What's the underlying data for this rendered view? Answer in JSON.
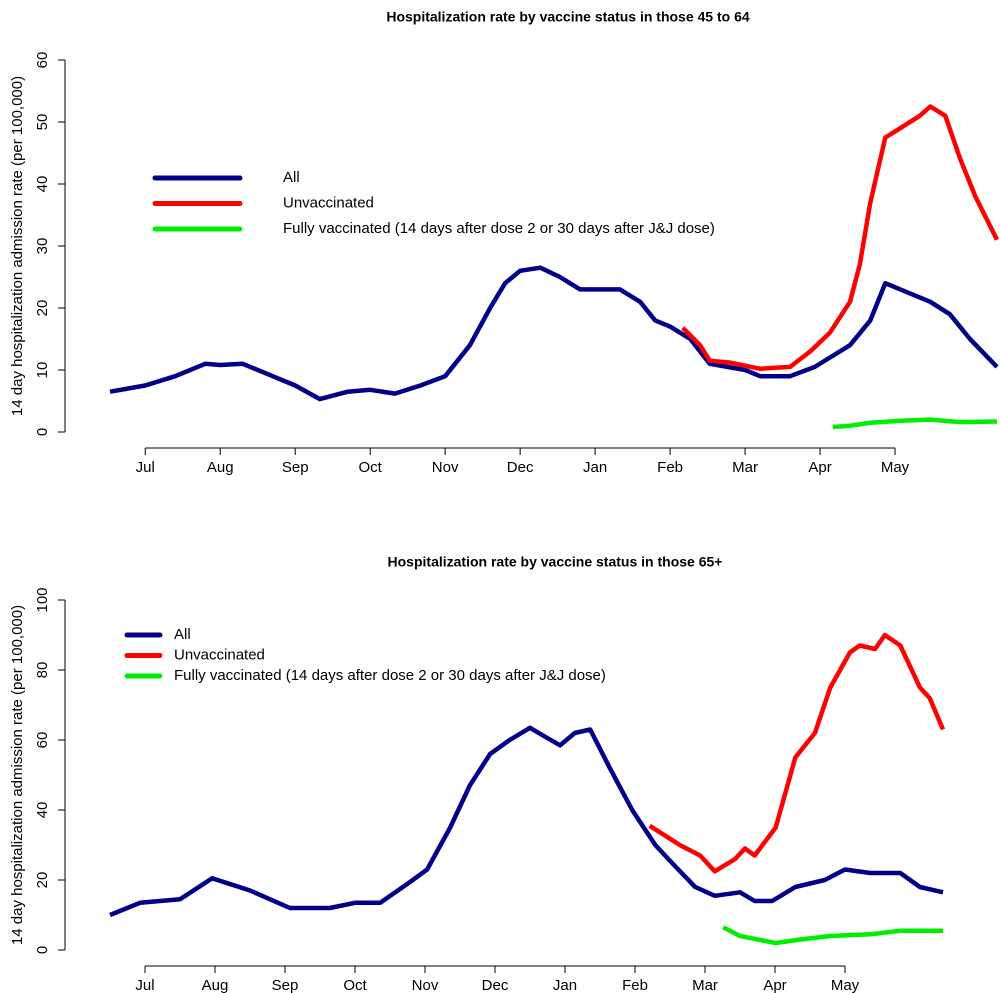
{
  "chart_data": [
    {
      "type": "line",
      "title": "Hospitalization rate by vaccine status in those 45 to 64",
      "y_label": "14 day hospitalization admission rate (per 100,000)",
      "xlim": [
        -0.47,
        11.36
      ],
      "ylim": [
        0,
        60
      ],
      "yticks": [
        0,
        10,
        20,
        30,
        40,
        50,
        60
      ],
      "xticks": [
        {
          "value": 0,
          "label": "Jul"
        },
        {
          "value": 1,
          "label": "Aug"
        },
        {
          "value": 2,
          "label": "Sep"
        },
        {
          "value": 3,
          "label": "Oct"
        },
        {
          "value": 4,
          "label": "Nov"
        },
        {
          "value": 5,
          "label": "Dec"
        },
        {
          "value": 6,
          "label": "Jan"
        },
        {
          "value": 7,
          "label": "Feb"
        },
        {
          "value": 8,
          "label": "Mar"
        },
        {
          "value": 9,
          "label": "Apr"
        },
        {
          "value": 10,
          "label": "May"
        }
      ],
      "series": [
        {
          "name": "All",
          "color": "#00008b",
          "x": [
            -0.47,
            0,
            0.4,
            0.8,
            1,
            1.3,
            1.6,
            2,
            2.33,
            2.7,
            3,
            3.33,
            3.67,
            4,
            4.33,
            4.6,
            4.8,
            5,
            5.27,
            5.53,
            5.8,
            6,
            6.33,
            6.6,
            6.8,
            7,
            7.27,
            7.53,
            8,
            8.2,
            8.6,
            8.93,
            9.13,
            9.4,
            9.67,
            9.87,
            10.07,
            10.47,
            10.73,
            11,
            11.36
          ],
          "values": [
            6.5,
            7.5,
            9,
            11,
            10.8,
            11,
            9.5,
            7.5,
            5.3,
            6.5,
            6.8,
            6.2,
            7.5,
            9,
            14,
            20,
            24,
            26,
            26.5,
            25,
            23,
            23,
            23,
            21,
            18,
            17,
            15,
            11,
            10,
            9,
            9,
            10.5,
            12,
            14,
            18,
            24,
            23,
            21,
            19,
            15,
            10.5
          ]
        },
        {
          "name": "Unvaccinated",
          "color": "#ff0000",
          "x": [
            7.17,
            7.4,
            7.53,
            7.8,
            8.2,
            8.6,
            8.87,
            9.13,
            9.4,
            9.53,
            9.67,
            9.87,
            10.07,
            10.33,
            10.47,
            10.67,
            10.87,
            11.07,
            11.36
          ],
          "values": [
            16.8,
            14,
            11.5,
            11.2,
            10.2,
            10.5,
            13,
            16,
            21,
            27,
            37,
            47.5,
            49,
            51,
            52.5,
            51,
            44,
            38,
            31
          ]
        },
        {
          "name": "Fully vaccinated (14 days after dose 2 or 30 days after J&J dose)",
          "color": "#00ee00",
          "x": [
            9.17,
            9.4,
            9.67,
            10.07,
            10.47,
            10.87,
            11.36
          ],
          "values": [
            0.8,
            1,
            1.5,
            1.8,
            2,
            1.6,
            1.7
          ]
        }
      ]
    },
    {
      "type": "line",
      "title": "Hospitalization rate by vaccine status in those 65+",
      "y_label": "14 day hospitalization admission rate (per 100,000)",
      "xlim": [
        -0.5,
        11.4
      ],
      "ylim": [
        0,
        100
      ],
      "yticks": [
        0,
        20,
        40,
        60,
        80,
        100
      ],
      "xticks": [
        {
          "value": 0,
          "label": "Jul"
        },
        {
          "value": 1,
          "label": "Aug"
        },
        {
          "value": 2,
          "label": "Sep"
        },
        {
          "value": 3,
          "label": "Oct"
        },
        {
          "value": 4,
          "label": "Nov"
        },
        {
          "value": 5,
          "label": "Dec"
        },
        {
          "value": 6,
          "label": "Jan"
        },
        {
          "value": 7,
          "label": "Feb"
        },
        {
          "value": 8,
          "label": "Mar"
        },
        {
          "value": 9,
          "label": "Apr"
        },
        {
          "value": 10,
          "label": "May"
        }
      ],
      "series": [
        {
          "name": "All",
          "color": "#00008b",
          "x": [
            -0.5,
            -0.07,
            0.5,
            0.96,
            1.5,
            2.07,
            2.64,
            3,
            3.36,
            3.79,
            4.03,
            4.36,
            4.64,
            4.93,
            5.21,
            5.5,
            5.71,
            5.93,
            6.14,
            6.36,
            6.64,
            6.96,
            7.29,
            7.57,
            7.86,
            8.14,
            8.5,
            8.71,
            8.96,
            9.29,
            9.71,
            10,
            10.36,
            10.79,
            11.07,
            11.4
          ],
          "values": [
            10,
            13.5,
            14.5,
            20.5,
            17,
            12,
            12,
            13.5,
            13.5,
            19.5,
            23,
            35,
            47,
            56,
            60,
            63.5,
            61,
            58.5,
            62,
            63,
            52,
            40,
            30,
            24,
            18,
            15.5,
            16.5,
            14,
            14,
            18,
            20,
            23,
            22,
            22,
            18,
            16.5
          ]
        },
        {
          "name": "Unvaccinated",
          "color": "#ff0000",
          "x": [
            7.21,
            7.64,
            7.93,
            8.14,
            8.43,
            8.57,
            8.71,
            9.01,
            9.29,
            9.57,
            9.79,
            10.07,
            10.21,
            10.43,
            10.57,
            10.79,
            11.07,
            11.21,
            11.4
          ],
          "values": [
            35.5,
            30,
            27,
            22.5,
            26,
            29,
            27,
            35,
            55,
            62,
            75,
            85,
            87,
            86,
            90,
            87,
            75,
            72,
            63
          ]
        },
        {
          "name": "Fully vaccinated (14 days after dose 2 or 30 days after J&J dose)",
          "color": "#00ee00",
          "x": [
            8.26,
            8.5,
            9.01,
            9.36,
            9.79,
            10.36,
            10.79,
            11.4
          ],
          "values": [
            6.5,
            4,
            2,
            3,
            4,
            4.5,
            5.5,
            5.5
          ]
        }
      ]
    }
  ]
}
